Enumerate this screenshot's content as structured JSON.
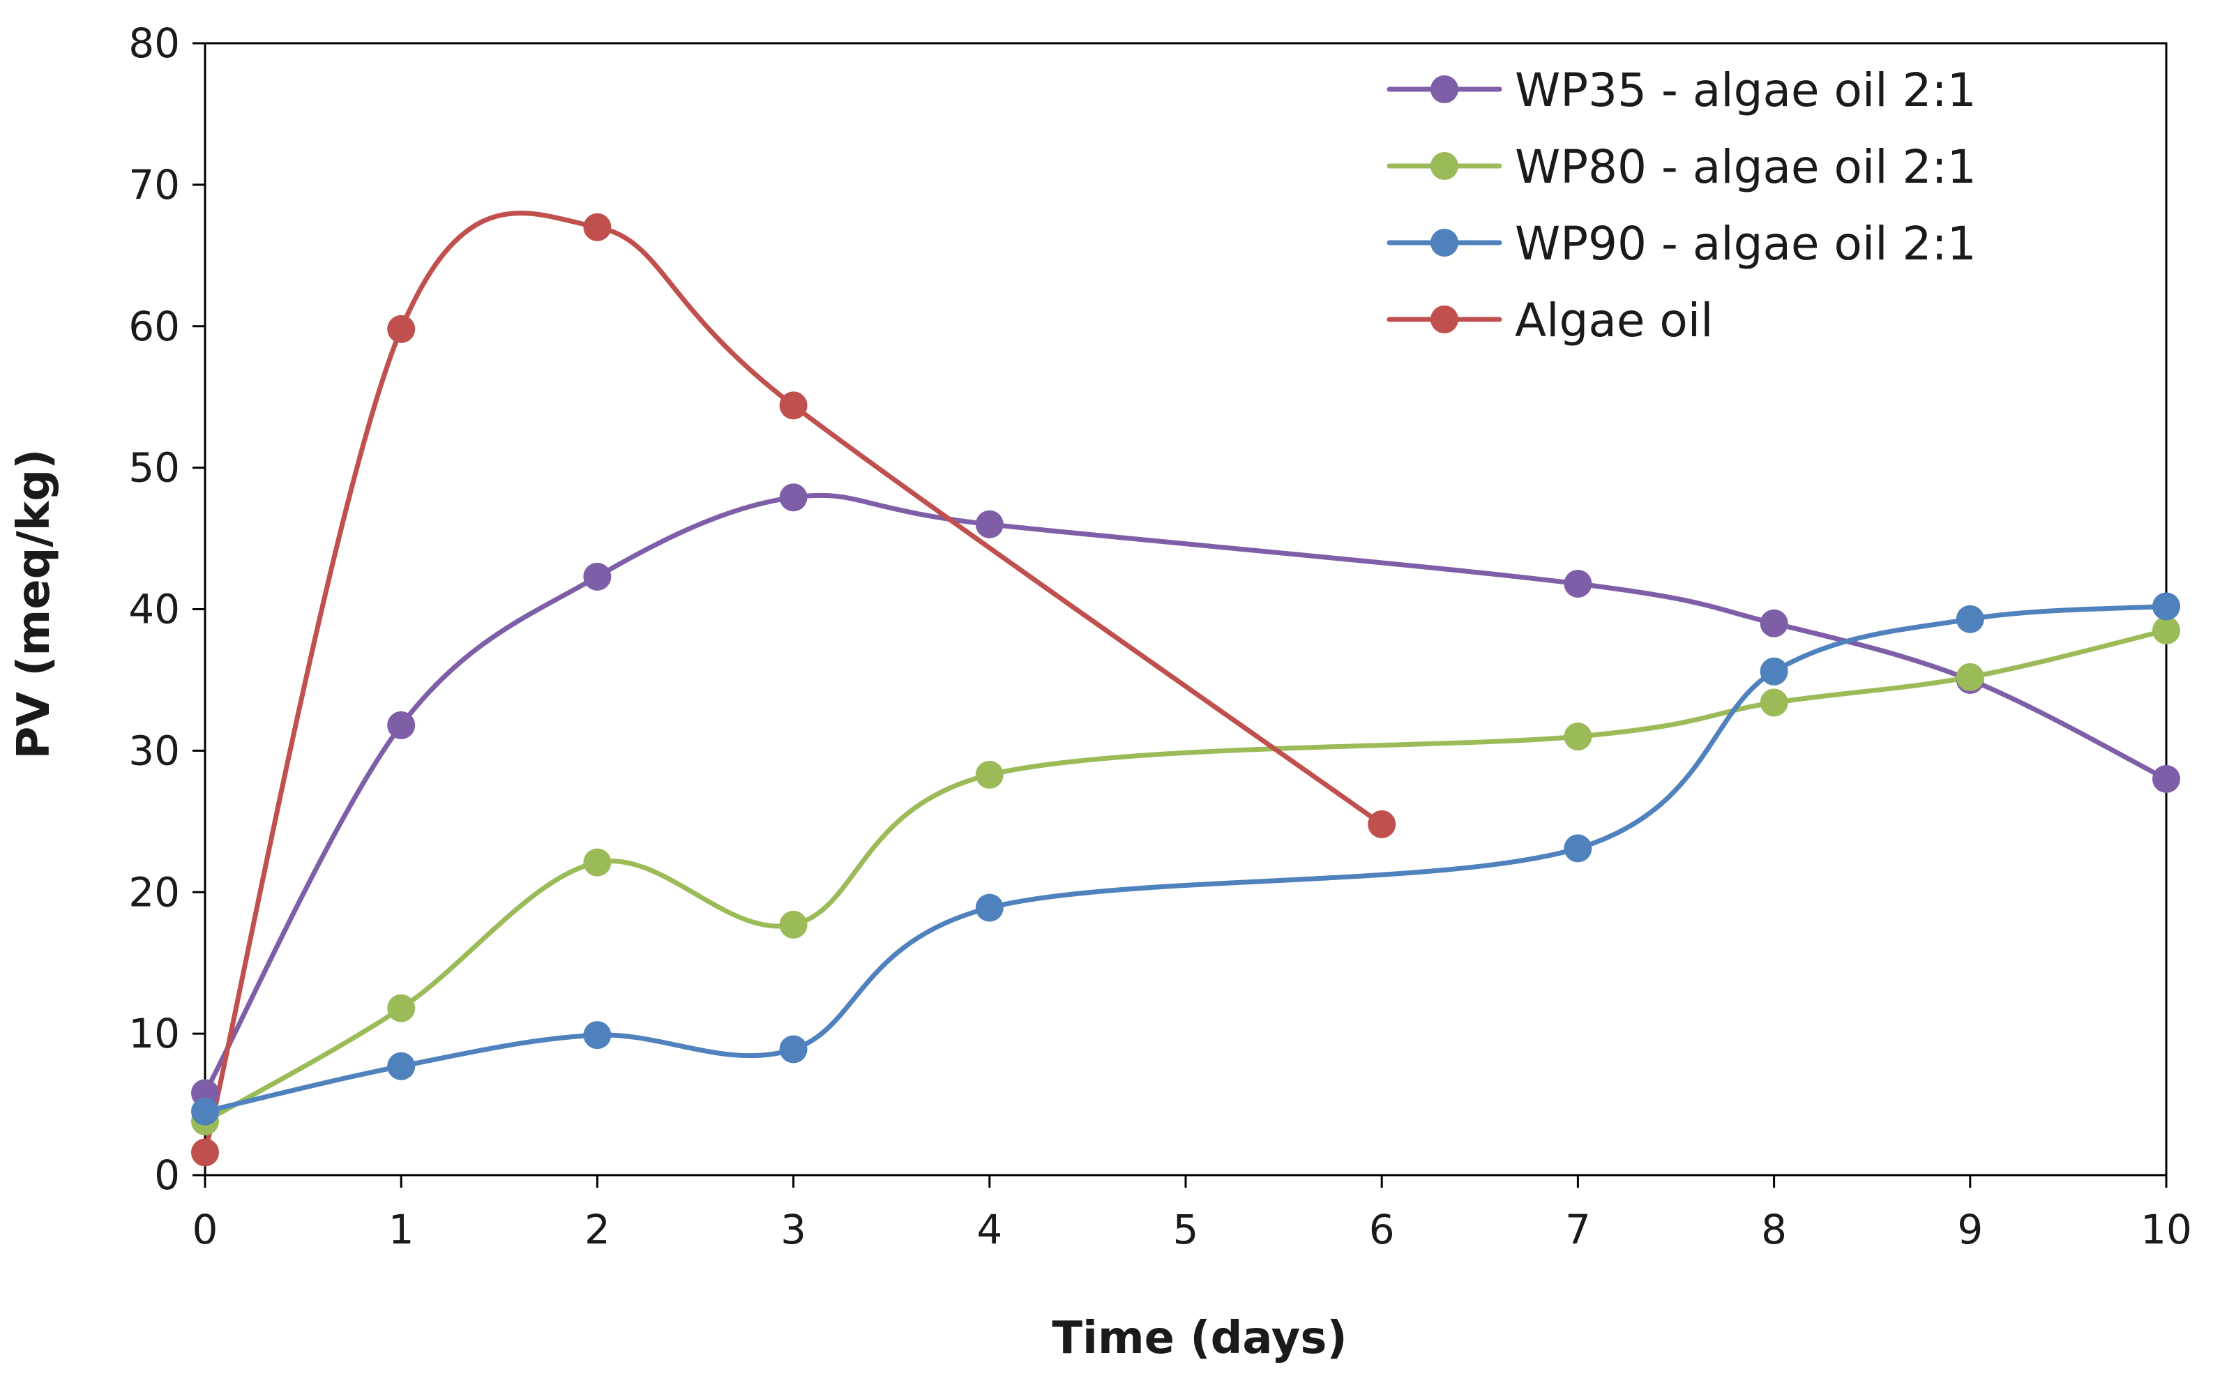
{
  "chart_data": {
    "type": "line",
    "smooth": true,
    "title": "",
    "xlabel": "Time (days)",
    "ylabel": "PV (meq/kg)",
    "xlim": [
      0,
      10
    ],
    "ylim": [
      0,
      80
    ],
    "xticks": [
      0,
      1,
      2,
      3,
      4,
      5,
      6,
      7,
      8,
      9,
      10
    ],
    "yticks": [
      0,
      10,
      20,
      30,
      40,
      50,
      60,
      70,
      80
    ],
    "grid": false,
    "legend_position": "top-right",
    "series": [
      {
        "name": "WP35 - algae oil 2:1",
        "color": "#7f5ea8",
        "x": [
          0,
          1,
          2,
          3,
          4,
          7,
          8,
          9,
          10
        ],
        "y": [
          5.8,
          31.8,
          42.3,
          47.9,
          46.0,
          41.8,
          39.0,
          35.0,
          28.0
        ]
      },
      {
        "name": "WP80 - algae oil 2:1",
        "color": "#9bbb59",
        "x": [
          0,
          1,
          2,
          3,
          4,
          7,
          8,
          9,
          10
        ],
        "y": [
          3.8,
          11.8,
          22.1,
          17.7,
          28.3,
          31.0,
          33.4,
          35.2,
          38.5
        ]
      },
      {
        "name": "WP90 - algae oil 2:1",
        "color": "#4f81bd",
        "x": [
          0,
          1,
          2,
          3,
          4,
          7,
          8,
          9,
          10
        ],
        "y": [
          4.5,
          7.7,
          9.9,
          8.9,
          18.9,
          23.1,
          35.6,
          39.3,
          40.2
        ]
      },
      {
        "name": "Algae oil",
        "color": "#c0504d",
        "x": [
          0,
          1,
          2,
          3,
          6
        ],
        "y": [
          1.6,
          59.8,
          67.0,
          54.4,
          24.8
        ]
      }
    ]
  }
}
